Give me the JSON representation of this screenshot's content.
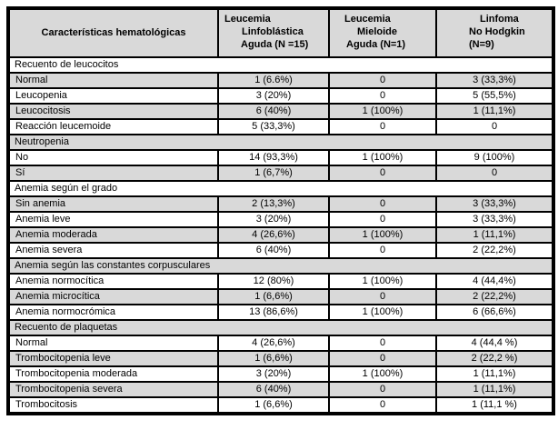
{
  "header": {
    "col1": "Características hematológicas",
    "col2_lines": [
      "Leucemia",
      "Linfoblástica",
      "Aguda (N =15)"
    ],
    "col3_lines": [
      "Leucemia",
      "Mieloide",
      "Aguda (N=1)"
    ],
    "col4_lines": [
      "Linfoma",
      "No Hodgkin",
      "(N=9)"
    ]
  },
  "colors": {
    "row_stripe": "#d9d9d9",
    "border": "#000000",
    "background": "#ffffff"
  },
  "chart_data": {
    "type": "table",
    "title": "Características hematológicas",
    "columns": [
      "Características hematológicas",
      "Leucemia Linfoblástica Aguda (N =15)",
      "Leucemia Mieloide Aguda (N=1)",
      "Linfoma No Hodgkin (N=9)"
    ],
    "sections": [
      {
        "section": "Recuento de leucocitos",
        "rows": [
          [
            "Normal",
            "1 (6.6%)",
            "0",
            "3 (33,3%)"
          ],
          [
            "Leucopenia",
            "3 (20%)",
            "0",
            "5 (55,5%)"
          ],
          [
            "Leucocitosis",
            "6 (40%)",
            "1 (100%)",
            "1 (11,1%)"
          ],
          [
            "Reacción leucemoide",
            "5 (33,3%)",
            "0",
            "0"
          ]
        ]
      },
      {
        "section": "Neutropenia",
        "rows": [
          [
            "No",
            "14 (93,3%)",
            "1 (100%)",
            "9 (100%)"
          ],
          [
            "Sí",
            "1 (6,7%)",
            "0",
            "0"
          ]
        ]
      },
      {
        "section": "Anemia según el grado",
        "rows": [
          [
            "Sin anemia",
            "2 (13,3%)",
            "0",
            "3 (33,3%)"
          ],
          [
            "Anemia leve",
            "3 (20%)",
            "0",
            "3 (33,3%)"
          ],
          [
            "Anemia moderada",
            "4 (26,6%)",
            "1 (100%)",
            "1 (11,1%)"
          ],
          [
            "Anemia severa",
            "6 (40%)",
            "0",
            "2 (22,2%)"
          ]
        ]
      },
      {
        "section": "Anemia según las constantes corpusculares",
        "rows": [
          [
            "Anemia normocítica",
            "12 (80%)",
            "1 (100%)",
            "4 (44,4%)"
          ],
          [
            "Anemia microcítica",
            "1 (6,6%)",
            "0",
            "2 (22,2%)"
          ],
          [
            "Anemia normocrómica",
            "13 (86,6%)",
            "1 (100%)",
            "6 (66,6%)"
          ]
        ]
      },
      {
        "section": "Recuento de plaquetas",
        "rows": [
          [
            "Normal",
            "4 (26,6%)",
            "0",
            "4 (44,4 %)"
          ],
          [
            "Trombocitopenia leve",
            "1 (6,6%)",
            "0",
            "2 (22,2 %)"
          ],
          [
            "Trombocitopenia moderada",
            "3 (20%)",
            "1 (100%)",
            "1 (11,1%)"
          ],
          [
            "Trombocitopenia severa",
            "6 (40%)",
            "0",
            "1 (11,1%)"
          ],
          [
            "Trombocitosis",
            "1 (6,6%)",
            "0",
            "1 (11,1 %)"
          ]
        ]
      }
    ]
  }
}
